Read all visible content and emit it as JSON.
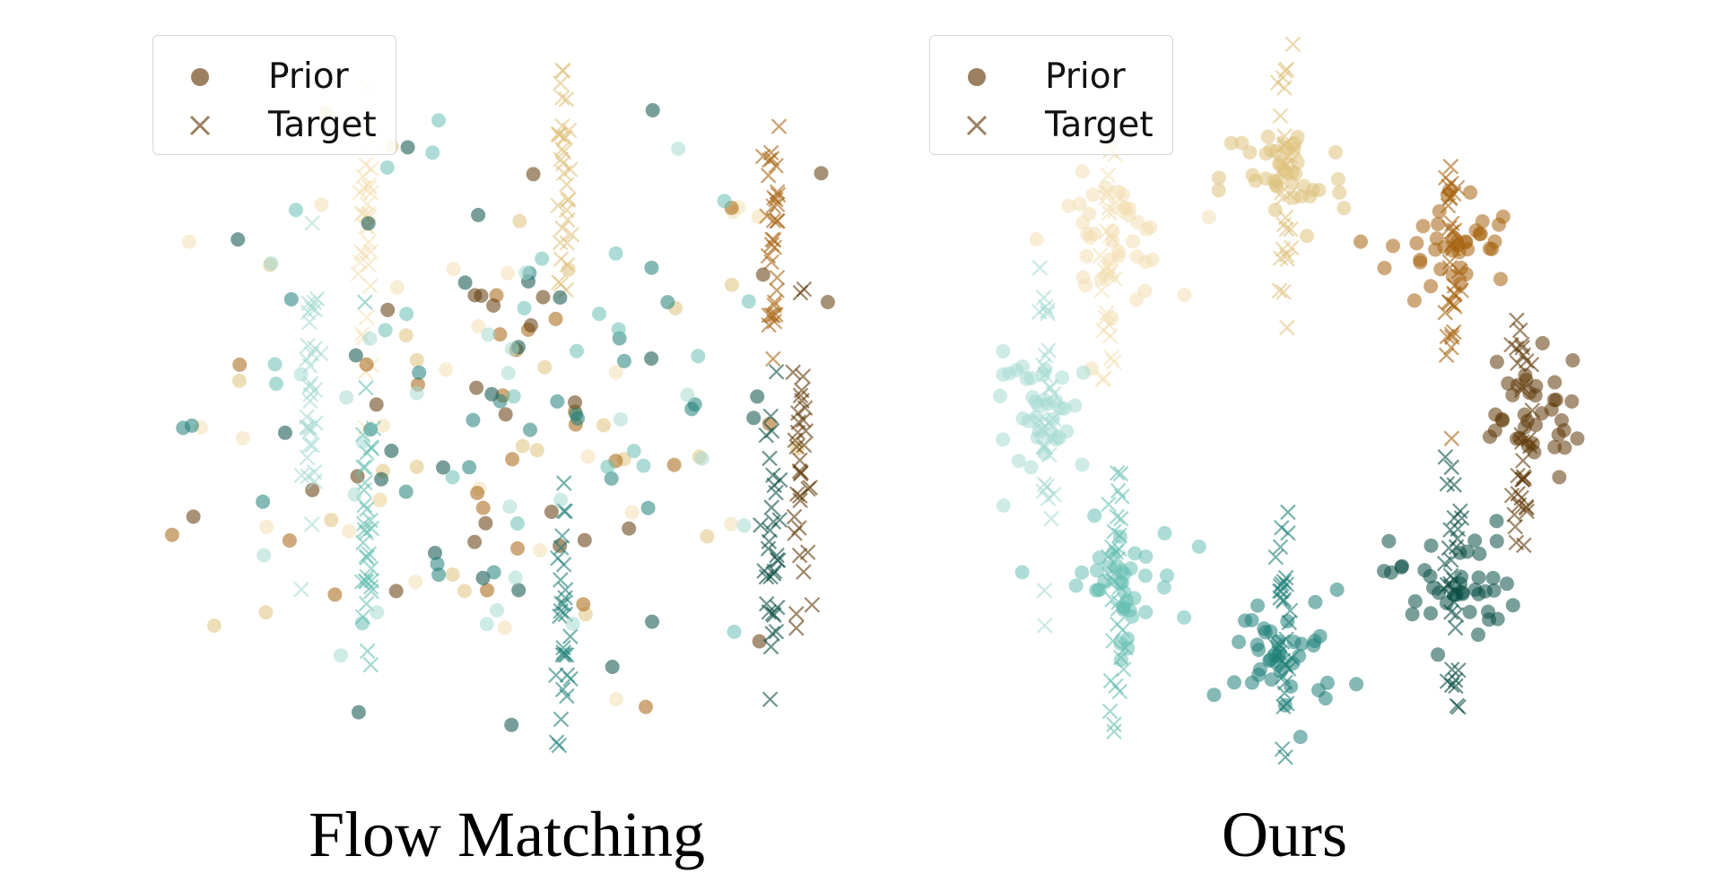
{
  "chart_data": [
    {
      "type": "scatter",
      "title": "",
      "caption": "Flow Matching",
      "legend": {
        "placement": "top-left",
        "entries": [
          {
            "label": "Prior",
            "marker": "circle"
          },
          {
            "label": "Target",
            "marker": "x"
          }
        ]
      },
      "xlim": [
        -5.5,
        5.5
      ],
      "ylim": [
        -5.5,
        5.5
      ],
      "grid": false,
      "axes_visible": false,
      "distribution": {
        "prior": "isotropic Gaussian cloud, points of all colours mixed uniformly",
        "target": "8 vertical strands at x = -3.8, -2.8, -2.0, -0.8, 0.8, 2.2, 3.8, 4.2"
      },
      "series": [
        {
          "name": "",
          "color": "#f3dfb2",
          "target_mean": [
            -2.0,
            2.6
          ]
        },
        {
          "name": "",
          "color": "#dfc27d",
          "target_mean": [
            0.8,
            3.2
          ]
        },
        {
          "name": "",
          "color": "#a6620f",
          "target_mean": [
            3.8,
            2.6
          ]
        },
        {
          "name": "",
          "color": "#5f3907",
          "target_mean": [
            4.2,
            -0.6
          ]
        },
        {
          "name": "",
          "color": "#0a4f45",
          "target_mean": [
            3.8,
            -1.8
          ]
        },
        {
          "name": "",
          "color": "#1f8078",
          "target_mean": [
            0.8,
            -3.4
          ]
        },
        {
          "name": "",
          "color": "#67bfb3",
          "target_mean": [
            -2.0,
            -1.8
          ]
        },
        {
          "name": "",
          "color": "#a6dbd2",
          "target_mean": [
            -2.8,
            0.2
          ]
        }
      ]
    },
    {
      "type": "scatter",
      "title": "",
      "caption": "Ours",
      "legend": {
        "placement": "top-left",
        "entries": [
          {
            "label": "Prior",
            "marker": "circle"
          },
          {
            "label": "Target",
            "marker": "x"
          }
        ]
      },
      "xlim": [
        -5.5,
        5.5
      ],
      "ylim": [
        -5.5,
        5.5
      ],
      "grid": false,
      "axes_visible": false,
      "distribution": {
        "prior": "8 round clusters on a ring, each sitting on its matching target strand",
        "target": "8 vertical strands arranged in a ring"
      },
      "series": [
        {
          "name": "",
          "color": "#f3dfb2",
          "mean": [
            -2.5,
            2.5
          ]
        },
        {
          "name": "",
          "color": "#dfc27d",
          "mean": [
            0.0,
            3.4
          ]
        },
        {
          "name": "",
          "color": "#a6620f",
          "mean": [
            2.4,
            2.4
          ]
        },
        {
          "name": "",
          "color": "#5f3907",
          "mean": [
            3.4,
            0.0
          ]
        },
        {
          "name": "",
          "color": "#0a4f45",
          "mean": [
            2.4,
            -2.4
          ]
        },
        {
          "name": "",
          "color": "#1f8078",
          "mean": [
            0.0,
            -3.4
          ]
        },
        {
          "name": "",
          "color": "#67bfb3",
          "mean": [
            -2.4,
            -2.4
          ]
        },
        {
          "name": "",
          "color": "#a6dbd2",
          "mean": [
            -3.4,
            0.0
          ]
        }
      ]
    }
  ]
}
